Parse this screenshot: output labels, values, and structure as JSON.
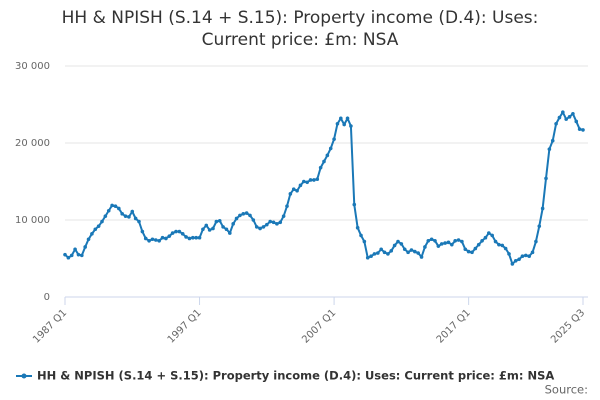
{
  "chart_data": {
    "type": "line",
    "title": [
      "HH & NPISH (S.14 + S.15): Property income (D.4): Uses:",
      "Current price: £m: NSA"
    ],
    "source": "Source:",
    "categories": [
      "1987 Q1",
      null,
      null,
      null,
      null,
      null,
      null,
      null,
      null,
      null,
      null,
      null,
      null,
      null,
      null,
      null,
      null,
      null,
      null,
      null,
      null,
      null,
      null,
      null,
      null,
      null,
      null,
      null,
      null,
      null,
      null,
      null,
      null,
      null,
      null,
      null,
      null,
      null,
      null,
      null,
      "1997 Q1",
      null,
      null,
      null,
      null,
      null,
      null,
      null,
      null,
      null,
      null,
      null,
      null,
      null,
      null,
      null,
      null,
      null,
      null,
      null,
      null,
      null,
      null,
      null,
      null,
      null,
      null,
      null,
      null,
      null,
      null,
      null,
      null,
      null,
      null,
      null,
      null,
      null,
      null,
      null,
      "2007 Q1",
      null,
      null,
      null,
      null,
      null,
      null,
      null,
      null,
      null,
      null,
      null,
      null,
      null,
      null,
      null,
      null,
      null,
      null,
      null,
      null,
      null,
      null,
      null,
      null,
      null,
      null,
      null,
      null,
      null,
      null,
      null,
      null,
      null,
      null,
      null,
      null,
      null,
      null,
      null,
      "2017 Q1",
      null,
      null,
      null,
      null,
      null,
      null,
      null,
      null,
      null,
      null,
      null,
      null,
      null,
      null,
      null,
      null,
      null,
      null,
      null,
      null,
      null,
      null,
      null,
      null,
      null,
      null,
      null,
      null,
      null,
      null,
      null,
      null,
      null,
      "2025 Q3"
    ],
    "series": [
      {
        "name": "HH & NPISH (S.14 + S.15): Property income (D.4): Uses: Current price: £m: NSA",
        "color": "#1a78b7",
        "values": [
          5500,
          5100,
          5400,
          6200,
          5500,
          5400,
          6500,
          7500,
          8200,
          8800,
          9200,
          9800,
          10500,
          11200,
          11900,
          11800,
          11500,
          10800,
          10500,
          10400,
          11100,
          10200,
          9800,
          8500,
          7600,
          7300,
          7500,
          7400,
          7300,
          7700,
          7600,
          7900,
          8300,
          8500,
          8500,
          8200,
          7800,
          7600,
          7700,
          7700,
          7700,
          8800,
          9300,
          8700,
          8900,
          9800,
          9900,
          9100,
          8800,
          8300,
          9500,
          10200,
          10600,
          10800,
          10900,
          10600,
          10000,
          9100,
          8900,
          9100,
          9400,
          9800,
          9700,
          9500,
          9700,
          10500,
          11800,
          13400,
          14000,
          13800,
          14500,
          15000,
          14900,
          15200,
          15200,
          15300,
          16800,
          17600,
          18400,
          19300,
          20500,
          22500,
          23200,
          22400,
          23200,
          22200,
          12000,
          9000,
          8000,
          7200,
          5100,
          5300,
          5600,
          5700,
          6200,
          5800,
          5600,
          6000,
          6700,
          7200,
          6900,
          6200,
          5800,
          6100,
          5900,
          5700,
          5200,
          6500,
          7300,
          7500,
          7300,
          6600,
          6900,
          7000,
          7100,
          6800,
          7300,
          7400,
          7200,
          6200,
          5900,
          5800,
          6300,
          6800,
          7300,
          7700,
          8300,
          8000,
          7200,
          6800,
          6700,
          6300,
          5600,
          4300,
          4700,
          4900,
          5300,
          5400,
          5300,
          5800,
          7200,
          9200,
          11500,
          15400,
          19200,
          20300,
          22500,
          23300,
          24000,
          23100,
          23400,
          23800,
          22800,
          21800,
          21700
        ]
      }
    ],
    "ylim": [
      0,
      30000
    ],
    "yticks": [
      0,
      {
        "value": 10000,
        "label": "10 000"
      },
      {
        "value": 20000,
        "label": "20 000"
      },
      {
        "value": 30000,
        "label": "30 000"
      }
    ],
    "grid": true
  }
}
